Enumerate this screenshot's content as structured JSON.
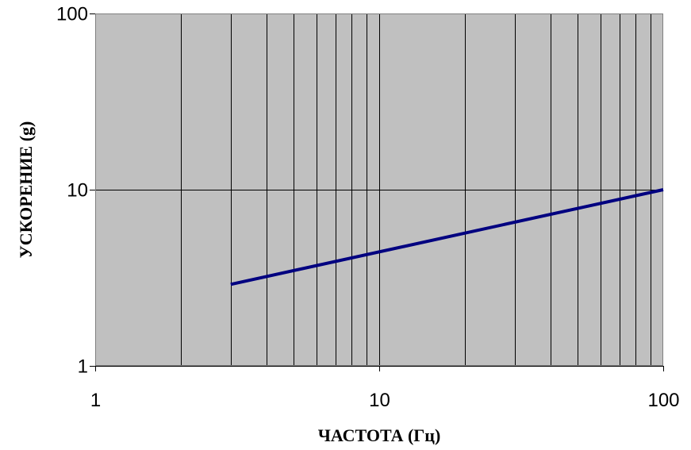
{
  "chart_data": {
    "type": "line",
    "xlabel": "ЧАСТОТА (Гц)",
    "ylabel": "УСКОРЕНИЕ (g)",
    "x_scale": "log",
    "y_scale": "log",
    "xlim": [
      1,
      100
    ],
    "ylim": [
      1,
      100
    ],
    "x_ticks": [
      1,
      10,
      100
    ],
    "x_tick_labels": [
      "1",
      "10",
      "100"
    ],
    "y_ticks": [
      1,
      10,
      100
    ],
    "y_tick_labels": [
      "1",
      "10",
      "100"
    ],
    "grid": true,
    "grid_x_minor": true,
    "grid_y_minor": false,
    "series": [
      {
        "x": [
          3,
          100
        ],
        "y": [
          2.9,
          10
        ],
        "color": "#000080"
      }
    ]
  },
  "colors": {
    "plot_background": "#c0c0c0",
    "grid": "#000000",
    "line": "#000080"
  }
}
